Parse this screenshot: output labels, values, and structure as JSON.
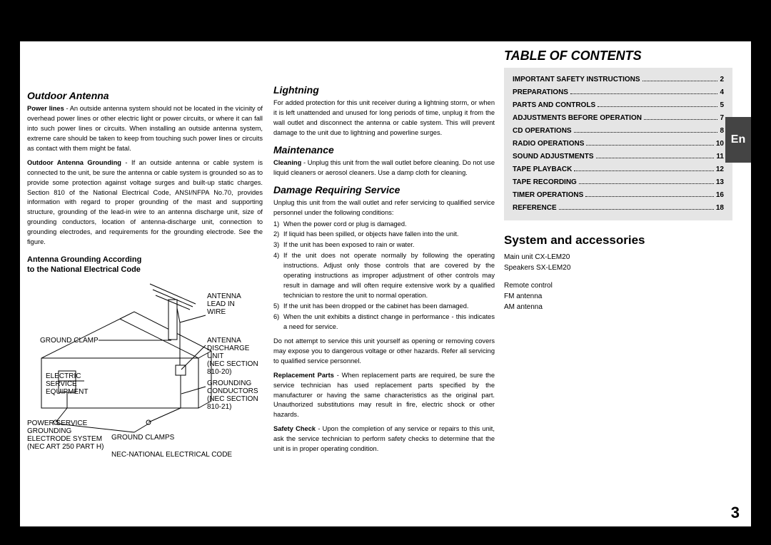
{
  "lang_tab": "En",
  "page_number": "3",
  "col1": {
    "outdoor_antenna": {
      "title": "Outdoor Antenna",
      "power_lines_label": "Power lines",
      "power_lines_text": " - An outside antenna system should not be located in the vicinity of overhead power lines or other electric light or power circuits, or where it can fall into such power lines or circuits. When installing an outside antenna system, extreme care should be taken to keep from touching such power lines or circuits as contact with them might be fatal.",
      "grounding_label": "Outdoor Antenna Grounding",
      "grounding_text": " - If an outside antenna or cable system is connected to the unit, be sure the antenna or cable system is grounded so as to provide some protection against voltage surges and built-up static charges. Section 810 of the National Electrical Code, ANSI/NFPA No.70, provides information with regard to proper grounding of the mast and supporting structure, grounding of the lead-in wire to an antenna discharge unit, size of grounding conductors, location of antenna-discharge unit, connection to grounding electrodes, and requirements for the grounding electrode. See the figure."
    },
    "diagram": {
      "title1": "Antenna Grounding According",
      "title2": "to the National Electrical Code",
      "labels": {
        "antenna_lead": "ANTENNA\nLEAD IN\nWIRE",
        "ground_clamp_top": "GROUND CLAMP",
        "antenna_discharge": "ANTENNA\nDISCHARGE\nUNIT\n(NEC SECTION\n810-20)",
        "electric_service": "ELECTRIC\nSERVICE\nEQUIPMENT",
        "grounding_conductors": "GROUNDING\nCONDUCTORS\n(NEC SECTION\n810-21)",
        "power_service": "POWER SERVICE\nGROUNDING\nELECTRODE SYSTEM\n(NEC ART 250 PART H)",
        "ground_clamps_bottom": "GROUND CLAMPS",
        "nec_code": "NEC-NATIONAL ELECTRICAL CODE"
      }
    }
  },
  "col2": {
    "lightning": {
      "title": "Lightning",
      "text": "For added protection for this unit receiver during a lightning storm, or when it is left unattended and unused for long periods of time, unplug it from the wall outlet and disconnect the antenna or cable system. This will prevent damage to the unit due to lightning and powerline surges."
    },
    "maintenance": {
      "title": "Maintenance",
      "cleaning_label": "Cleaning",
      "cleaning_text": " - Unplug this unit from the wall outlet before cleaning. Do not use liquid cleaners or aerosol cleaners. Use a damp cloth for cleaning."
    },
    "damage": {
      "title": "Damage Requiring Service",
      "intro": "Unplug this unit from the wall outlet and refer servicing to qualified service personnel under the following conditions:",
      "items": [
        "When the power cord or plug is damaged.",
        "If liquid has been spilled, or objects have fallen into the unit.",
        "If the unit has been exposed to rain or water.",
        "If the unit does not operate normally by following the operating instructions. Adjust only those controls that are covered by the operating instructions as improper adjustment of other controls may result in damage and will often require extensive work by a qualified technician to restore the unit to normal operation.",
        "If the unit has been dropped or the cabinet has been damaged.",
        "When the unit exhibits a distinct change in performance - this indicates a need for service."
      ],
      "warn": "Do not attempt to service this unit yourself as opening or removing covers may expose you to dangerous voltage or other hazards. Refer all servicing to qualified service personnel.",
      "replacement_label": "Replacement Parts",
      "replacement_text": " - When replacement parts are required, be sure the service technician has used replacement parts specified by the manufacturer or having the same characteristics as the original part. Unauthorized substitutions may result in fire, electric shock or other hazards.",
      "safety_label": "Safety Check",
      "safety_text": " - Upon the completion of any service or repairs to this unit, ask the service technician to perform safety checks to determine that the unit is in proper operating condition."
    }
  },
  "toc": {
    "title": "TABLE OF CONTENTS",
    "rows": [
      {
        "label": "IMPORTANT SAFETY INSTRUCTIONS",
        "page": "2"
      },
      {
        "label": "PREPARATIONS",
        "page": "4"
      },
      {
        "label": "PARTS AND CONTROLS",
        "page": "5"
      },
      {
        "label": "ADJUSTMENTS BEFORE OPERATION",
        "page": "7"
      },
      {
        "label": "CD OPERATIONS",
        "page": "8"
      },
      {
        "label": "RADIO OPERATIONS",
        "page": "10"
      },
      {
        "label": "SOUND ADJUSTMENTS",
        "page": "11"
      },
      {
        "label": "TAPE PLAYBACK",
        "page": "12"
      },
      {
        "label": "TAPE RECORDING",
        "page": "13"
      },
      {
        "label": "TIMER OPERATIONS",
        "page": "16"
      },
      {
        "label": "REFERENCE",
        "page": "18"
      }
    ]
  },
  "system": {
    "title": "System and accessories",
    "line1": "Main unit CX-LEM20",
    "line2": "Speakers SX-LEM20",
    "line3": "Remote control",
    "line4": "FM antenna",
    "line5": "AM antenna"
  }
}
